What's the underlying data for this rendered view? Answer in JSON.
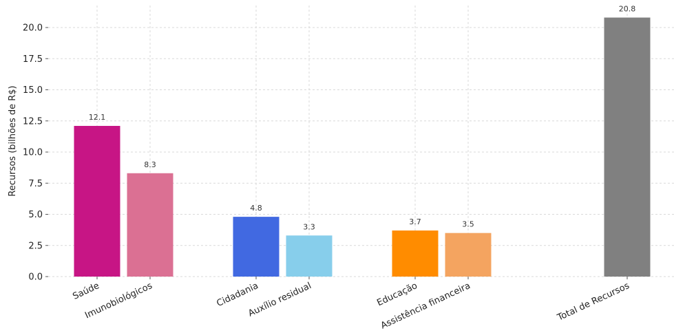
{
  "chart_data": {
    "type": "bar",
    "title": "",
    "xlabel": "",
    "ylabel": "Recursos (bilhões de R$)",
    "ylim": [
      0,
      21.8
    ],
    "yticks": [
      0.0,
      2.5,
      5.0,
      7.5,
      10.0,
      12.5,
      15.0,
      17.5,
      20.0
    ],
    "ytick_labels": [
      "0.0",
      "2.5",
      "5.0",
      "7.5",
      "10.0",
      "12.5",
      "15.0",
      "17.5",
      "20.0"
    ],
    "grid": true,
    "bars": [
      {
        "category": "Saúde",
        "value": 12.1,
        "label": "12.1",
        "color": "#c71585"
      },
      {
        "category": "Imunobiológicos",
        "value": 8.3,
        "label": "8.3",
        "color": "#db7093"
      },
      {
        "category": "Cidadania",
        "value": 4.8,
        "label": "4.8",
        "color": "#4169e1"
      },
      {
        "category": "Auxílio residual",
        "value": 3.3,
        "label": "3.3",
        "color": "#87ceeb"
      },
      {
        "category": "Educação",
        "value": 3.7,
        "label": "3.7",
        "color": "#ff8c00"
      },
      {
        "category": "Assistência financeira",
        "value": 3.5,
        "label": "3.5",
        "color": "#f4a460"
      },
      {
        "category": "Total de Recursos",
        "value": 20.8,
        "label": "20.8",
        "color": "#808080"
      }
    ]
  }
}
